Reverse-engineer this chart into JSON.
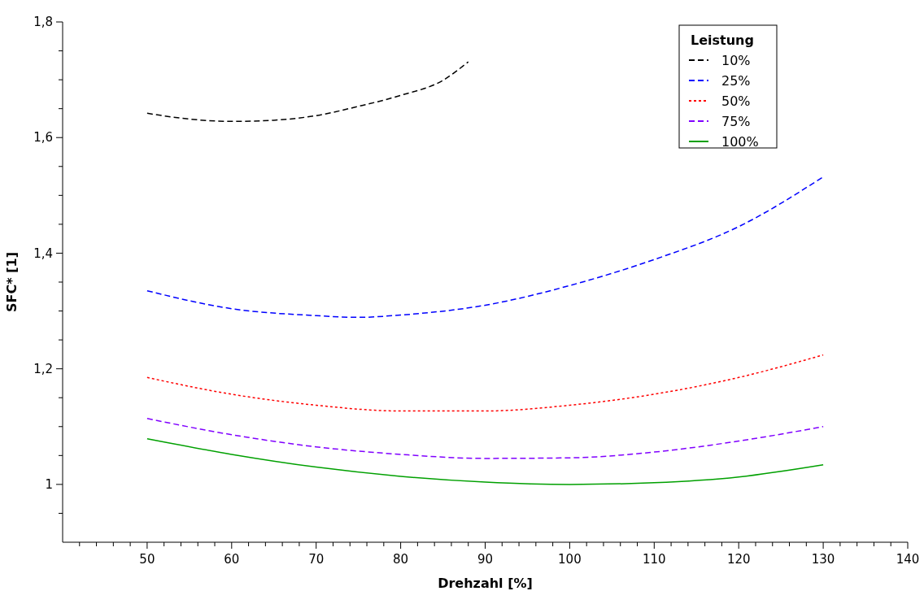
{
  "chart_data": {
    "type": "line",
    "xlabel": "Drehzahl [%]",
    "ylabel": "SFC* [1]",
    "legend_title": "Leistung",
    "legend": "top right",
    "grid": false,
    "marker": "none",
    "xlim": [
      40,
      140
    ],
    "xticks": [
      {
        "value": 42,
        "label": null
      },
      {
        "value": 44,
        "label": null
      },
      {
        "value": 46,
        "label": null
      },
      {
        "value": 48,
        "label": null
      },
      50,
      {
        "value": 52,
        "label": null
      },
      {
        "value": 54,
        "label": null
      },
      {
        "value": 56,
        "label": null
      },
      {
        "value": 58,
        "label": null
      },
      60,
      {
        "value": 62,
        "label": null
      },
      {
        "value": 64,
        "label": null
      },
      {
        "value": 66,
        "label": null
      },
      {
        "value": 68,
        "label": null
      },
      70,
      {
        "value": 72,
        "label": null
      },
      {
        "value": 74,
        "label": null
      },
      {
        "value": 76,
        "label": null
      },
      {
        "value": 78,
        "label": null
      },
      80,
      {
        "value": 82,
        "label": null
      },
      {
        "value": 84,
        "label": null
      },
      {
        "value": 86,
        "label": null
      },
      {
        "value": 88,
        "label": null
      },
      90,
      {
        "value": 92,
        "label": null
      },
      {
        "value": 94,
        "label": null
      },
      {
        "value": 96,
        "label": null
      },
      {
        "value": 98,
        "label": null
      },
      100,
      {
        "value": 102,
        "label": null
      },
      {
        "value": 104,
        "label": null
      },
      {
        "value": 106,
        "label": null
      },
      {
        "value": 108,
        "label": null
      },
      110,
      {
        "value": 112,
        "label": null
      },
      {
        "value": 114,
        "label": null
      },
      {
        "value": 116,
        "label": null
      },
      {
        "value": 118,
        "label": null
      },
      120,
      {
        "value": 122,
        "label": null
      },
      {
        "value": 124,
        "label": null
      },
      {
        "value": 126,
        "label": null
      },
      {
        "value": 128,
        "label": null
      },
      130,
      {
        "value": 132,
        "label": null
      },
      {
        "value": 134,
        "label": null
      },
      {
        "value": 136,
        "label": null
      },
      {
        "value": 138,
        "label": null
      },
      140
    ],
    "ylim": [
      0.9,
      1.8
    ],
    "yticks": [
      {
        "value": 0.95,
        "label": null
      },
      1,
      {
        "value": 1.05,
        "label": null
      },
      {
        "value": 1.1,
        "label": null
      },
      {
        "value": 1.15,
        "label": null
      },
      {
        "value": 1.2,
        "label": "1,2"
      },
      {
        "value": 1.25,
        "label": null
      },
      {
        "value": 1.3,
        "label": null
      },
      {
        "value": 1.35,
        "label": null
      },
      {
        "value": 1.4,
        "label": "1,4"
      },
      {
        "value": 1.45,
        "label": null
      },
      {
        "value": 1.5,
        "label": null
      },
      {
        "value": 1.55,
        "label": null
      },
      {
        "value": 1.6,
        "label": "1,6"
      },
      {
        "value": 1.65,
        "label": null
      },
      {
        "value": 1.7,
        "label": null
      },
      {
        "value": 1.75,
        "label": null
      },
      {
        "value": 1.8,
        "label": "1,8"
      }
    ],
    "series": [
      {
        "name": "10%",
        "color": "#000000",
        "line_style": "dashed",
        "x": [
          50,
          55,
          60,
          65,
          70,
          75,
          80,
          85,
          88
        ],
        "values": [
          1.642,
          1.632,
          1.628,
          1.63,
          1.638,
          1.654,
          1.673,
          1.699,
          1.731
        ]
      },
      {
        "name": "25%",
        "color": "#0000ff",
        "line_style": "dashed",
        "x": [
          50,
          60,
          70,
          75,
          80,
          90,
          100,
          110,
          120,
          130
        ],
        "values": [
          1.335,
          1.304,
          1.292,
          1.289,
          1.293,
          1.31,
          1.344,
          1.389,
          1.446,
          1.532
        ]
      },
      {
        "name": "50%",
        "color": "#ff0000",
        "line_style": "dotted",
        "x": [
          50,
          60,
          70,
          80,
          90,
          100,
          110,
          120,
          130
        ],
        "values": [
          1.185,
          1.156,
          1.137,
          1.127,
          1.127,
          1.137,
          1.156,
          1.185,
          1.224
        ]
      },
      {
        "name": "75%",
        "color": "#8000ff",
        "line_style": "dashed",
        "x": [
          50,
          60,
          70,
          80,
          90,
          100,
          110,
          120,
          130
        ],
        "values": [
          1.114,
          1.086,
          1.065,
          1.052,
          1.045,
          1.046,
          1.056,
          1.075,
          1.1
        ]
      },
      {
        "name": "100%",
        "color": "#00a000",
        "line_style": "solid",
        "x": [
          50,
          60,
          70,
          80,
          90,
          100,
          110,
          120,
          130
        ],
        "values": [
          1.079,
          1.052,
          1.03,
          1.014,
          1.004,
          1.0,
          1.003,
          1.013,
          1.034
        ]
      }
    ]
  }
}
